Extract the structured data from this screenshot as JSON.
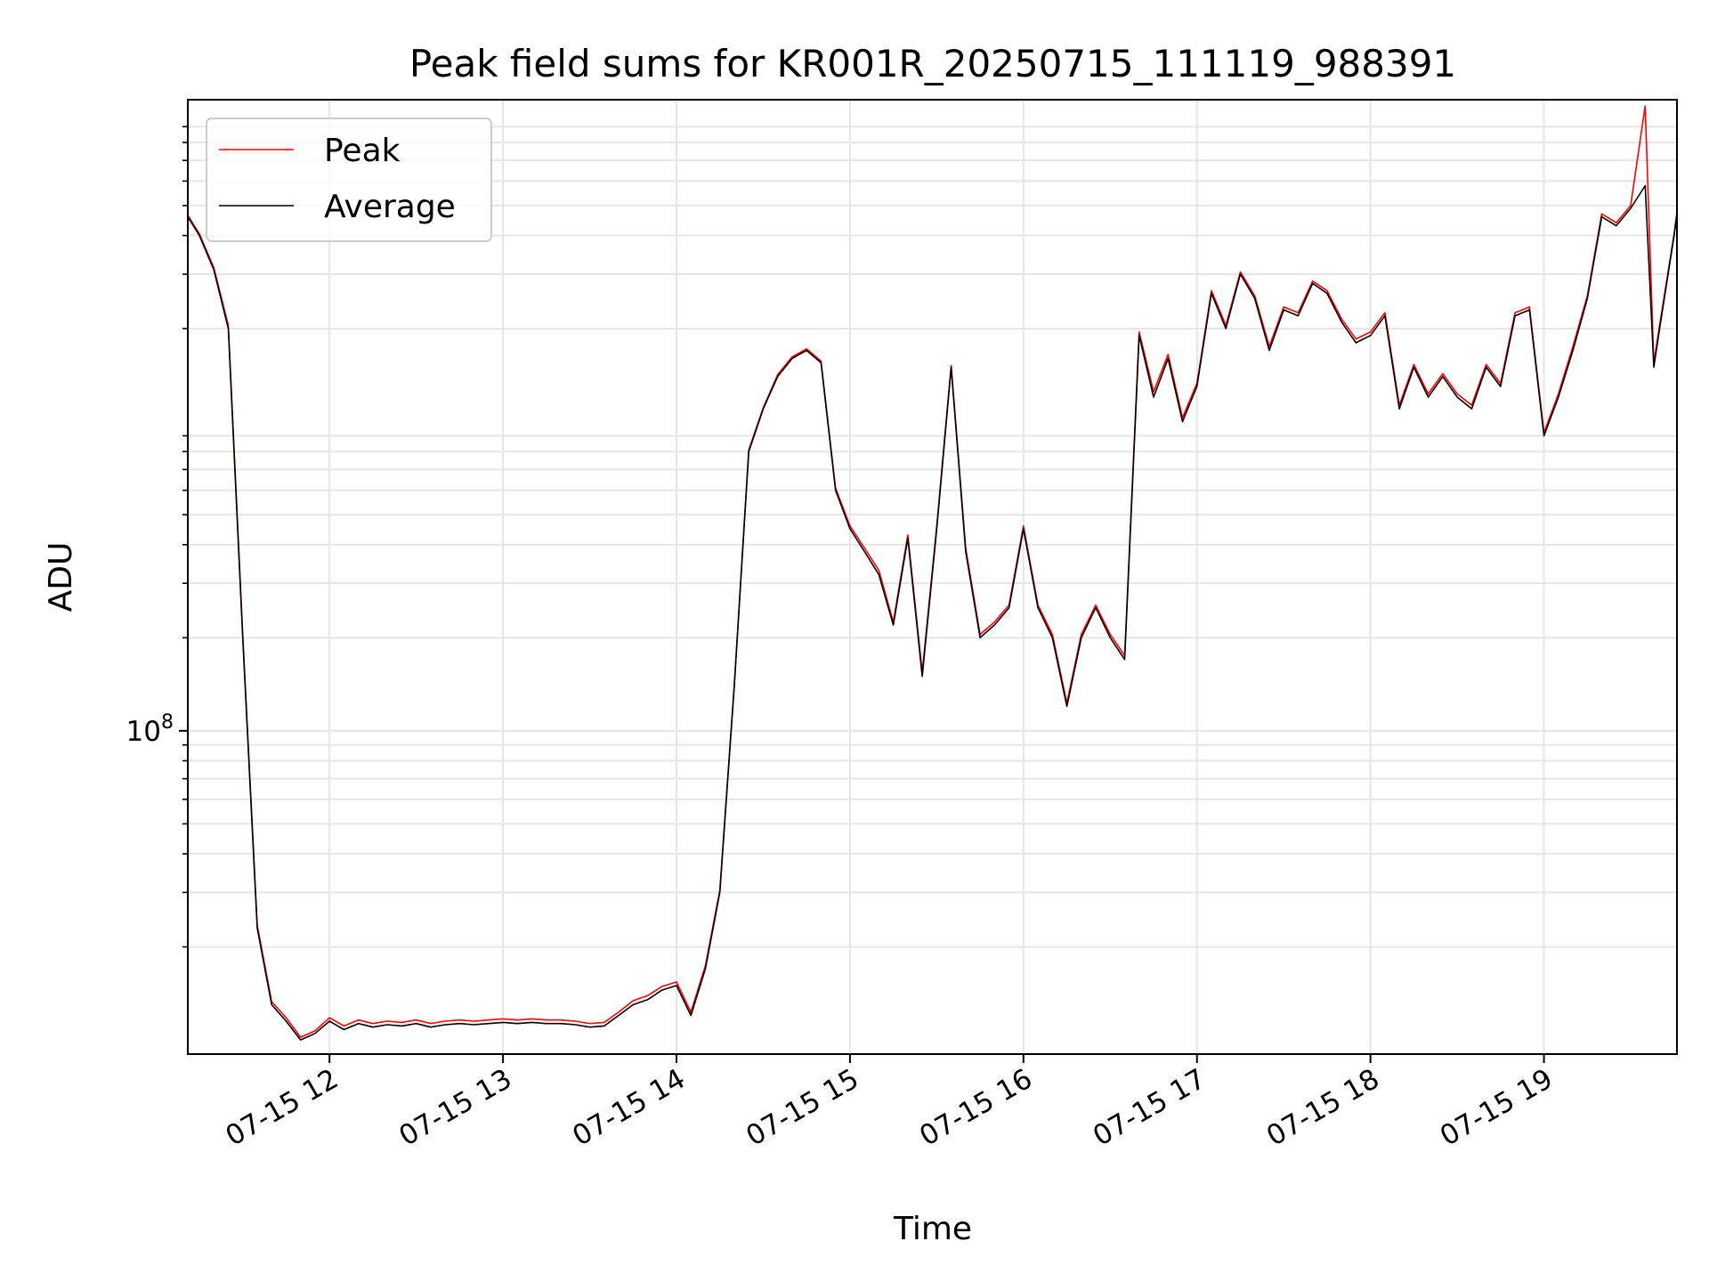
{
  "chart_data": {
    "type": "line",
    "title": "Peak field sums for KR001R_20250715_111119_988391",
    "xlabel": "Time",
    "ylabel": "ADU",
    "yscale": "log",
    "grid": true,
    "legend": {
      "placement": "upper-left",
      "entries": [
        "Peak",
        "Average"
      ]
    },
    "xlim": [
      "2025-07-15T11:11",
      "2025-07-15T19:46"
    ],
    "ylim": [
      9000000,
      11000000000
    ],
    "x_ticks": [
      {
        "value": "2025-07-15T12:00",
        "label": "07-15 12"
      },
      {
        "value": "2025-07-15T13:00",
        "label": "07-15 13"
      },
      {
        "value": "2025-07-15T14:00",
        "label": "07-15 14"
      },
      {
        "value": "2025-07-15T15:00",
        "label": "07-15 15"
      },
      {
        "value": "2025-07-15T16:00",
        "label": "07-15 16"
      },
      {
        "value": "2025-07-15T17:00",
        "label": "07-15 17"
      },
      {
        "value": "2025-07-15T18:00",
        "label": "07-15 18"
      },
      {
        "value": "2025-07-15T19:00",
        "label": "07-15 19"
      }
    ],
    "y_ticks": [
      {
        "value": 100000000,
        "base": "10",
        "exp": "8"
      }
    ],
    "x": [
      "2025-07-15T11:11",
      "2025-07-15T11:15",
      "2025-07-15T11:20",
      "2025-07-15T11:25",
      "2025-07-15T11:30",
      "2025-07-15T11:35",
      "2025-07-15T11:40",
      "2025-07-15T11:45",
      "2025-07-15T11:50",
      "2025-07-15T11:55",
      "2025-07-15T12:00",
      "2025-07-15T12:05",
      "2025-07-15T12:10",
      "2025-07-15T12:15",
      "2025-07-15T12:20",
      "2025-07-15T12:25",
      "2025-07-15T12:30",
      "2025-07-15T12:35",
      "2025-07-15T12:40",
      "2025-07-15T12:45",
      "2025-07-15T12:50",
      "2025-07-15T12:55",
      "2025-07-15T13:00",
      "2025-07-15T13:05",
      "2025-07-15T13:10",
      "2025-07-15T13:15",
      "2025-07-15T13:20",
      "2025-07-15T13:25",
      "2025-07-15T13:30",
      "2025-07-15T13:35",
      "2025-07-15T13:40",
      "2025-07-15T13:45",
      "2025-07-15T13:50",
      "2025-07-15T13:55",
      "2025-07-15T14:00",
      "2025-07-15T14:05",
      "2025-07-15T14:10",
      "2025-07-15T14:15",
      "2025-07-15T14:20",
      "2025-07-15T14:25",
      "2025-07-15T14:30",
      "2025-07-15T14:35",
      "2025-07-15T14:40",
      "2025-07-15T14:45",
      "2025-07-15T14:50",
      "2025-07-15T14:55",
      "2025-07-15T15:00",
      "2025-07-15T15:05",
      "2025-07-15T15:10",
      "2025-07-15T15:15",
      "2025-07-15T15:20",
      "2025-07-15T15:25",
      "2025-07-15T15:30",
      "2025-07-15T15:35",
      "2025-07-15T15:40",
      "2025-07-15T15:45",
      "2025-07-15T15:50",
      "2025-07-15T15:55",
      "2025-07-15T16:00",
      "2025-07-15T16:05",
      "2025-07-15T16:10",
      "2025-07-15T16:15",
      "2025-07-15T16:20",
      "2025-07-15T16:25",
      "2025-07-15T16:30",
      "2025-07-15T16:35",
      "2025-07-15T16:40",
      "2025-07-15T16:45",
      "2025-07-15T16:50",
      "2025-07-15T16:55",
      "2025-07-15T17:00",
      "2025-07-15T17:05",
      "2025-07-15T17:10",
      "2025-07-15T17:15",
      "2025-07-15T17:20",
      "2025-07-15T17:25",
      "2025-07-15T17:30",
      "2025-07-15T17:35",
      "2025-07-15T17:40",
      "2025-07-15T17:45",
      "2025-07-15T17:50",
      "2025-07-15T17:55",
      "2025-07-15T18:00",
      "2025-07-15T18:05",
      "2025-07-15T18:10",
      "2025-07-15T18:15",
      "2025-07-15T18:20",
      "2025-07-15T18:25",
      "2025-07-15T18:30",
      "2025-07-15T18:35",
      "2025-07-15T18:40",
      "2025-07-15T18:45",
      "2025-07-15T18:50",
      "2025-07-15T18:55",
      "2025-07-15T19:00",
      "2025-07-15T19:05",
      "2025-07-15T19:10",
      "2025-07-15T19:15",
      "2025-07-15T19:20",
      "2025-07-15T19:25",
      "2025-07-15T19:30",
      "2025-07-15T19:35",
      "2025-07-15T19:38",
      "2025-07-15T19:40",
      "2025-07-15T19:45",
      "2025-07-15T19:46"
    ],
    "series": [
      {
        "name": "Average",
        "color": "#000000",
        "values": [
          4600000000,
          4000000000,
          3100000000,
          2000000000,
          200000000,
          23000000,
          13000000,
          11500000,
          10000000,
          10500000,
          11500000,
          10800000,
          11300000,
          11000000,
          11200000,
          11100000,
          11300000,
          11000000,
          11200000,
          11300000,
          11200000,
          11300000,
          11400000,
          11300000,
          11400000,
          11300000,
          11300000,
          11200000,
          11000000,
          11100000,
          12000000,
          13000000,
          13500000,
          14500000,
          15000000,
          12000000,
          17000000,
          30000000,
          140000000,
          800000000,
          1100000000,
          1400000000,
          1600000000,
          1700000000,
          1550000000,
          600000000,
          450000000,
          380000000,
          320000000,
          220000000,
          420000000,
          150000000,
          450000000,
          1500000000,
          380000000,
          200000000,
          220000000,
          250000000,
          450000000,
          250000000,
          200000000,
          120000000,
          200000000,
          250000000,
          200000000,
          170000000,
          1900000000,
          1200000000,
          1600000000,
          1000000000,
          1300000000,
          2600000000,
          2000000000,
          3000000000,
          2500000000,
          1700000000,
          2300000000,
          2200000000,
          2800000000,
          2600000000,
          2100000000,
          1800000000,
          1900000000,
          2200000000,
          1100000000,
          1500000000,
          1200000000,
          1400000000,
          1200000000,
          1100000000,
          1500000000,
          1300000000,
          2200000000,
          2300000000,
          900000000,
          1200000000,
          1700000000,
          2500000000,
          4600000000,
          4300000000,
          4900000000,
          5800000000,
          1500000000,
          2000000000,
          4000000000,
          4700000000
        ]
      },
      {
        "name": "Peak",
        "color": "#ff0000",
        "values": [
          4650000000,
          4050000000,
          3150000000,
          2050000000,
          205000000,
          23500000,
          13300000,
          11800000,
          10200000,
          10700000,
          11800000,
          11100000,
          11600000,
          11300000,
          11500000,
          11400000,
          11600000,
          11300000,
          11500000,
          11600000,
          11500000,
          11600000,
          11700000,
          11600000,
          11700000,
          11600000,
          11600000,
          11500000,
          11300000,
          11400000,
          12300000,
          13400000,
          13900000,
          14900000,
          15400000,
          12300000,
          17400000,
          30500000,
          142000000,
          810000000,
          1110000000,
          1420000000,
          1620000000,
          1720000000,
          1570000000,
          610000000,
          460000000,
          390000000,
          330000000,
          225000000,
          430000000,
          155000000,
          460000000,
          1520000000,
          390000000,
          205000000,
          225000000,
          255000000,
          460000000,
          255000000,
          205000000,
          123000000,
          205000000,
          255000000,
          205000000,
          175000000,
          1950000000,
          1250000000,
          1650000000,
          1030000000,
          1330000000,
          2650000000,
          2050000000,
          3050000000,
          2550000000,
          1750000000,
          2350000000,
          2250000000,
          2850000000,
          2650000000,
          2150000000,
          1850000000,
          1950000000,
          2250000000,
          1130000000,
          1530000000,
          1230000000,
          1430000000,
          1230000000,
          1130000000,
          1530000000,
          1330000000,
          2250000000,
          2350000000,
          920000000,
          1230000000,
          1750000000,
          2550000000,
          4700000000,
          4400000000,
          5000000000,
          10500000000,
          1550000000,
          2050000000,
          4050000000,
          4750000000
        ]
      }
    ]
  }
}
